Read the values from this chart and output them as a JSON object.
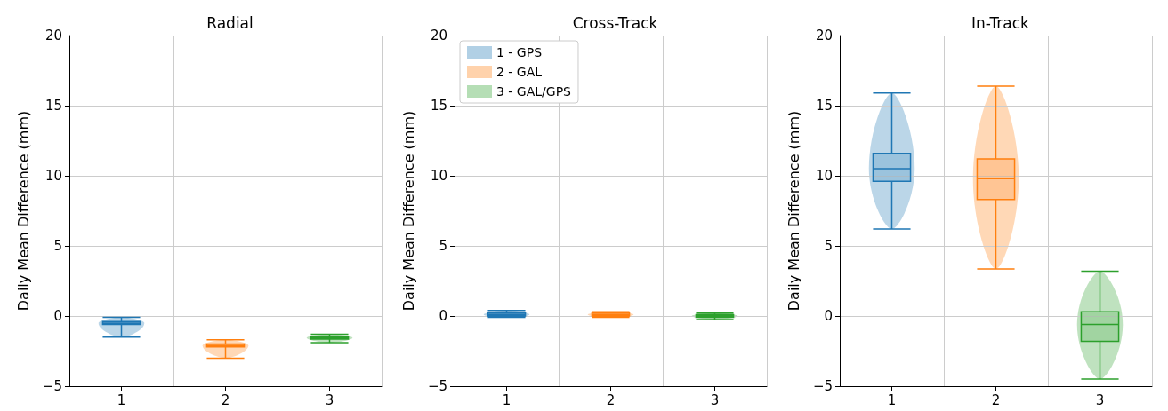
{
  "chart_data": [
    {
      "type": "box",
      "title": "Radial",
      "ylabel": "Daily Mean Difference (mm)",
      "categories": [
        "1",
        "2",
        "3"
      ],
      "ylim": [
        -5,
        20
      ],
      "yticks": [
        -5,
        0,
        5,
        10,
        15,
        20
      ],
      "grid": true,
      "legend": false,
      "series": [
        {
          "color": "#1f77b4",
          "boxes": [
            {
              "low": -1.5,
              "q1": -0.6,
              "median": -0.5,
              "q3": -0.4,
              "high": -0.1
            },
            null,
            null
          ]
        },
        {
          "color": "#ff7f0e",
          "boxes": [
            null,
            {
              "low": -3.0,
              "q1": -2.2,
              "median": -2.1,
              "q3": -2.0,
              "high": -1.7
            },
            null
          ]
        },
        {
          "color": "#2ca02c",
          "boxes": [
            null,
            null,
            {
              "low": -1.9,
              "q1": -1.65,
              "median": -1.55,
              "q3": -1.5,
              "high": -1.3
            }
          ]
        }
      ]
    },
    {
      "type": "box",
      "title": "Cross-Track",
      "ylabel": "Daily Mean Difference (mm)",
      "categories": [
        "1",
        "2",
        "3"
      ],
      "ylim": [
        -5,
        20
      ],
      "yticks": [
        -5,
        0,
        5,
        10,
        15,
        20
      ],
      "grid": true,
      "legend": "top left",
      "series": [
        {
          "name": "1 - GPS",
          "color": "#1f77b4",
          "boxes": [
            {
              "low": -0.1,
              "q1": 0.0,
              "median": 0.1,
              "q3": 0.2,
              "high": 0.4
            },
            null,
            null
          ]
        },
        {
          "name": "2 - GAL",
          "color": "#ff7f0e",
          "boxes": [
            null,
            {
              "low": -0.1,
              "q1": 0.0,
              "median": 0.1,
              "q3": 0.2,
              "high": 0.3
            },
            null
          ]
        },
        {
          "name": "3 - GAL/GPS",
          "color": "#2ca02c",
          "boxes": [
            null,
            null,
            {
              "low": -0.25,
              "q1": -0.1,
              "median": 0.0,
              "q3": 0.1,
              "high": 0.2
            }
          ]
        }
      ]
    },
    {
      "type": "box",
      "title": "In-Track",
      "ylabel": "Daily Mean Difference (mm)",
      "categories": [
        "1",
        "2",
        "3"
      ],
      "ylim": [
        -5,
        20
      ],
      "yticks": [
        -5,
        0,
        5,
        10,
        15,
        20
      ],
      "grid": true,
      "legend": false,
      "series": [
        {
          "color": "#1f77b4",
          "boxes": [
            {
              "low": 6.2,
              "q1": 9.6,
              "median": 10.5,
              "q3": 11.6,
              "high": 15.9
            },
            null,
            null
          ]
        },
        {
          "color": "#ff7f0e",
          "boxes": [
            null,
            {
              "low": 3.35,
              "q1": 8.3,
              "median": 9.8,
              "q3": 11.2,
              "high": 16.4
            },
            null
          ]
        },
        {
          "color": "#2ca02c",
          "boxes": [
            null,
            null,
            {
              "low": -4.5,
              "q1": -1.8,
              "median": -0.6,
              "q3": 0.3,
              "high": 3.2
            }
          ]
        }
      ]
    }
  ]
}
